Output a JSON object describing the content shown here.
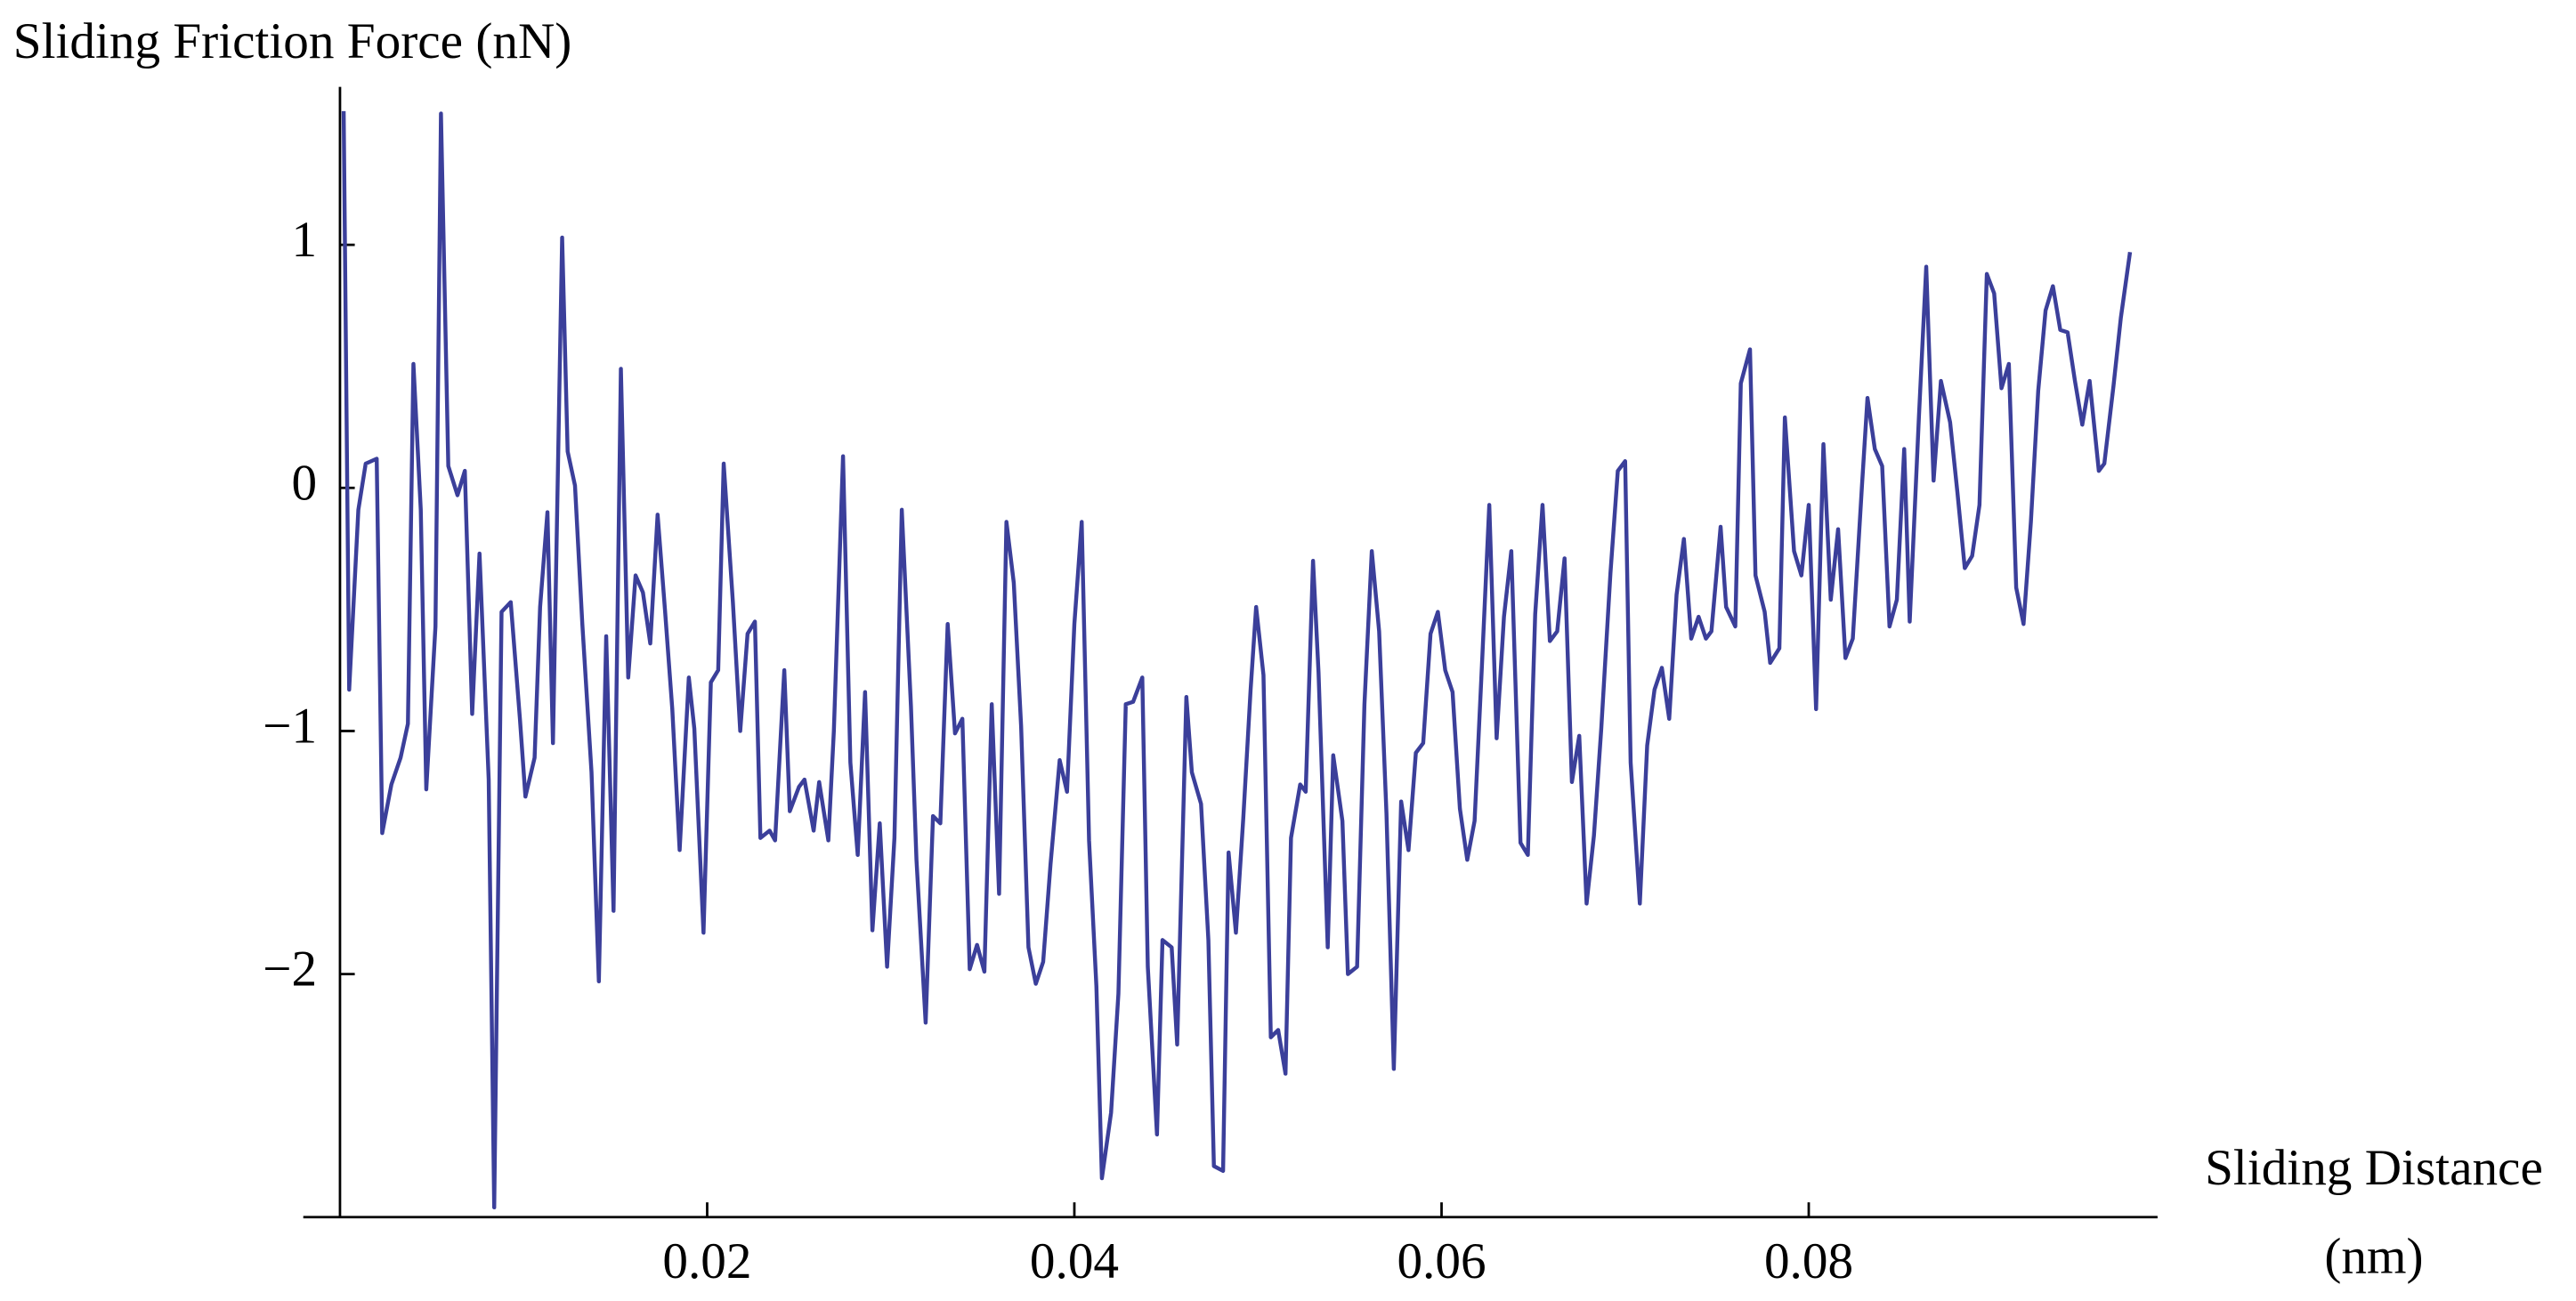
{
  "chart_data": {
    "type": "line",
    "ylabel": "Sliding Friction Force (nN)",
    "xlabel": "Sliding Distance",
    "xlabel_unit": "(nm)",
    "xlim": [
      -0.002,
      0.099
    ],
    "ylim": [
      -3,
      1.65
    ],
    "xticks": [
      0.02,
      0.04,
      0.06,
      0.08
    ],
    "yticks": [
      {
        "value": -2,
        "label": "−2"
      },
      {
        "value": -1,
        "label": "−1"
      },
      0,
      1
    ],
    "x": [
      0.0002,
      0.0005,
      0.001,
      0.0014,
      0.002,
      0.0023,
      0.0028,
      0.0033,
      0.0037,
      0.004,
      0.0044,
      0.0047,
      0.0052,
      0.0055,
      0.0059,
      0.0064,
      0.0068,
      0.0072,
      0.0076,
      0.0081,
      0.0084,
      0.0088,
      0.0093,
      0.0098,
      0.0101,
      0.0106,
      0.0109,
      0.0113,
      0.0116,
      0.0121,
      0.0124,
      0.0128,
      0.0132,
      0.0137,
      0.0141,
      0.0145,
      0.0149,
      0.0153,
      0.0157,
      0.0161,
      0.0165,
      0.0169,
      0.0173,
      0.0177,
      0.0181,
      0.0185,
      0.019,
      0.0193,
      0.0198,
      0.0202,
      0.0206,
      0.0209,
      0.0214,
      0.0218,
      0.0222,
      0.0226,
      0.0229,
      0.0234,
      0.0237,
      0.0242,
      0.0245,
      0.025,
      0.0253,
      0.0258,
      0.0261,
      0.0266,
      0.0269,
      0.0274,
      0.0278,
      0.0282,
      0.0286,
      0.029,
      0.0294,
      0.0298,
      0.0302,
      0.0306,
      0.0311,
      0.0314,
      0.0319,
      0.0323,
      0.0327,
      0.0331,
      0.0335,
      0.0339,
      0.0343,
      0.0347,
      0.0351,
      0.0355,
      0.0359,
      0.0363,
      0.0367,
      0.0371,
      0.0375,
      0.0379,
      0.0383,
      0.0387,
      0.0392,
      0.0396,
      0.04,
      0.0404,
      0.0408,
      0.0412,
      0.0415,
      0.042,
      0.0424,
      0.0428,
      0.0432,
      0.0437,
      0.044,
      0.0445,
      0.0448,
      0.0453,
      0.0456,
      0.0461,
      0.0464,
      0.0469,
      0.0473,
      0.0476,
      0.0481,
      0.0484,
      0.0488,
      0.0492,
      0.0496,
      0.0499,
      0.0503,
      0.0507,
      0.0511,
      0.0515,
      0.0518,
      0.0523,
      0.0526,
      0.053,
      0.0533,
      0.0538,
      0.0541,
      0.0546,
      0.0549,
      0.0554,
      0.0558,
      0.0562,
      0.0566,
      0.057,
      0.0574,
      0.0578,
      0.0582,
      0.0586,
      0.059,
      0.0594,
      0.0598,
      0.0602,
      0.0606,
      0.061,
      0.0614,
      0.0618,
      0.0622,
      0.0626,
      0.063,
      0.0634,
      0.0638,
      0.0643,
      0.0647,
      0.0651,
      0.0655,
      0.0659,
      0.0663,
      0.0667,
      0.0671,
      0.0675,
      0.0679,
      0.0683,
      0.0687,
      0.0692,
      0.0696,
      0.07,
      0.0703,
      0.0708,
      0.0712,
      0.0716,
      0.072,
      0.0724,
      0.0728,
      0.0732,
      0.0736,
      0.074,
      0.0744,
      0.0747,
      0.0752,
      0.0755,
      0.076,
      0.0763,
      0.0768,
      0.0771,
      0.0776,
      0.0779,
      0.0784,
      0.0787,
      0.0792,
      0.0796,
      0.08,
      0.0804,
      0.0808,
      0.0812,
      0.0816,
      0.082,
      0.0824,
      0.0829,
      0.0832,
      0.0836,
      0.084,
      0.0844,
      0.0848,
      0.0852,
      0.0855,
      0.086,
      0.0864,
      0.0868,
      0.0872,
      0.0877,
      0.0881,
      0.0885,
      0.0889,
      0.0893,
      0.0897,
      0.0901,
      0.0905,
      0.0909,
      0.0913,
      0.0917,
      0.0921,
      0.0925,
      0.0929,
      0.0933,
      0.0937,
      0.0941,
      0.0945,
      0.0949,
      0.0953,
      0.0958,
      0.0961,
      0.0966,
      0.097,
      0.0975
    ],
    "series": [
      {
        "color": "#3b3f9a",
        "values": [
          1.55,
          -0.83,
          -0.09,
          0.1,
          0.12,
          -1.42,
          -1.22,
          -1.11,
          -0.97,
          0.51,
          -0.09,
          -1.24,
          -0.57,
          1.54,
          0.09,
          -0.03,
          0.07,
          -0.93,
          -0.27,
          -1.2,
          -2.96,
          -0.51,
          -0.47,
          -0.95,
          -1.27,
          -1.11,
          -0.49,
          -0.1,
          -1.05,
          1.03,
          0.15,
          0.01,
          -0.56,
          -1.17,
          -2.03,
          -0.61,
          -1.74,
          0.49,
          -0.78,
          -0.36,
          -0.43,
          -0.64,
          -0.11,
          -0.5,
          -0.91,
          -1.49,
          -0.78,
          -0.99,
          -1.83,
          -0.8,
          -0.75,
          0.1,
          -0.47,
          -1.0,
          -0.6,
          -0.55,
          -1.44,
          -1.41,
          -1.45,
          -0.75,
          -1.33,
          -1.23,
          -1.2,
          -1.41,
          -1.21,
          -1.45,
          -1.0,
          0.13,
          -1.13,
          -1.51,
          -0.84,
          -1.82,
          -1.38,
          -1.97,
          -1.44,
          -0.09,
          -0.9,
          -1.53,
          -2.2,
          -1.35,
          -1.38,
          -0.56,
          -1.01,
          -0.95,
          -1.98,
          -1.88,
          -1.99,
          -0.89,
          -1.67,
          -0.14,
          -0.39,
          -0.98,
          -1.89,
          -2.04,
          -1.95,
          -1.55,
          -1.12,
          -1.25,
          -0.56,
          -0.14,
          -1.45,
          -2.05,
          -2.84,
          -2.57,
          -2.08,
          -0.89,
          -0.88,
          -0.78,
          -1.97,
          -2.66,
          -1.86,
          -1.89,
          -2.29,
          -0.86,
          -1.17,
          -1.3,
          -1.86,
          -2.79,
          -2.81,
          -1.5,
          -1.83,
          -1.36,
          -0.83,
          -0.49,
          -0.77,
          -2.26,
          -2.23,
          -2.41,
          -1.44,
          -1.22,
          -1.25,
          -0.3,
          -0.76,
          -1.89,
          -1.1,
          -1.37,
          -2.0,
          -1.97,
          -0.89,
          -0.26,
          -0.59,
          -1.34,
          -2.39,
          -1.29,
          -1.49,
          -1.09,
          -1.05,
          -0.6,
          -0.51,
          -0.75,
          -0.84,
          -1.32,
          -1.53,
          -1.37,
          -0.73,
          -0.07,
          -1.03,
          -0.53,
          -0.26,
          -1.46,
          -1.51,
          -0.52,
          -0.07,
          -0.63,
          -0.59,
          -0.29,
          -1.21,
          -1.02,
          -1.71,
          -1.43,
          -0.99,
          -0.35,
          0.07,
          0.11,
          -1.13,
          -1.71,
          -1.06,
          -0.83,
          -0.74,
          -0.95,
          -0.44,
          -0.21,
          -0.62,
          -0.53,
          -0.62,
          -0.59,
          -0.16,
          -0.49,
          -0.57,
          0.43,
          0.57,
          -0.36,
          -0.51,
          -0.72,
          -0.66,
          0.29,
          -0.26,
          -0.36,
          -0.07,
          -0.91,
          0.18,
          -0.46,
          -0.17,
          -0.7,
          -0.62,
          0.01,
          0.37,
          0.16,
          0.09,
          -0.57,
          -0.46,
          0.16,
          -0.55,
          0.29,
          0.91,
          0.03,
          0.44,
          0.27,
          -0.02,
          -0.33,
          -0.28,
          -0.07,
          0.88,
          0.8,
          0.41,
          0.51,
          -0.41,
          -0.56,
          -0.14,
          0.4,
          0.73,
          0.83,
          0.65,
          0.64,
          0.44,
          0.26,
          0.44,
          0.07,
          0.1,
          0.42,
          0.7,
          0.97
        ]
      }
    ]
  }
}
